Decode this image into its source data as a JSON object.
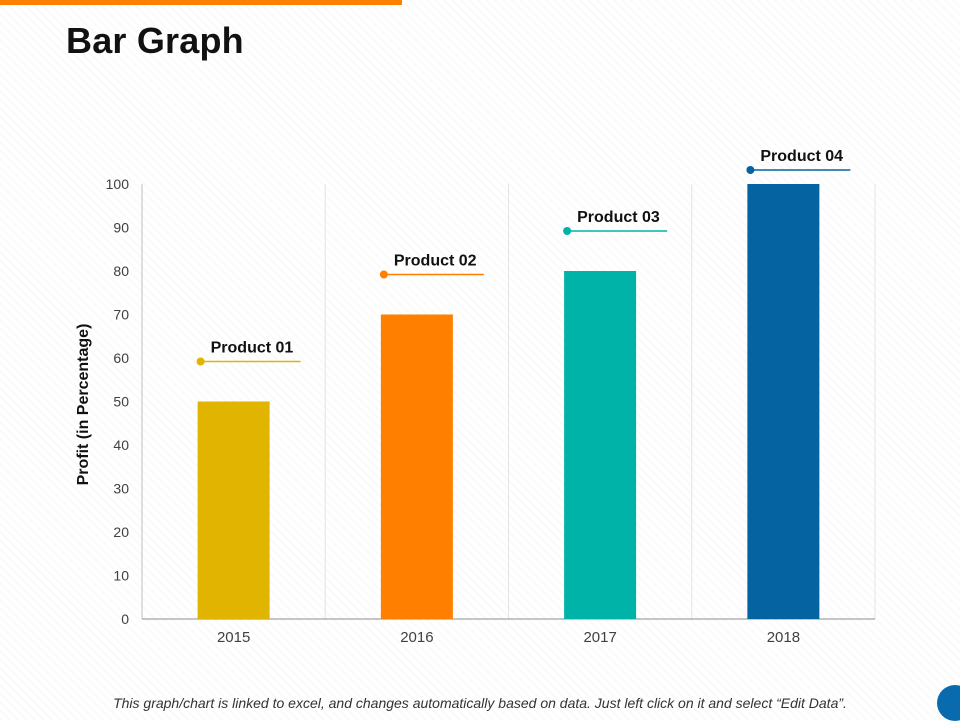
{
  "page": {
    "title": "Bar Graph",
    "footnote": "This graph/chart is linked to excel, and changes automatically based on data.  Just left click on it and select “Edit Data”.",
    "accent_color": "#FF7F00",
    "corner_dot_color": "#0A6AAE"
  },
  "chart_data": {
    "type": "bar",
    "title": "",
    "xlabel": "",
    "ylabel": "Profit (in Percentage)",
    "ylim": [
      0,
      100
    ],
    "yticks": [
      0,
      10,
      20,
      30,
      40,
      50,
      60,
      70,
      80,
      90,
      100
    ],
    "categories": [
      "2015",
      "2016",
      "2017",
      "2018"
    ],
    "values": [
      50,
      70,
      80,
      100
    ],
    "bar_labels": [
      "Product 01",
      "Product 02",
      "Product 03",
      "Product 04"
    ],
    "colors": [
      "#E0B400",
      "#FF7F00",
      "#00B3A8",
      "#0463A0"
    ],
    "grid": "vertical",
    "legend": "none"
  }
}
